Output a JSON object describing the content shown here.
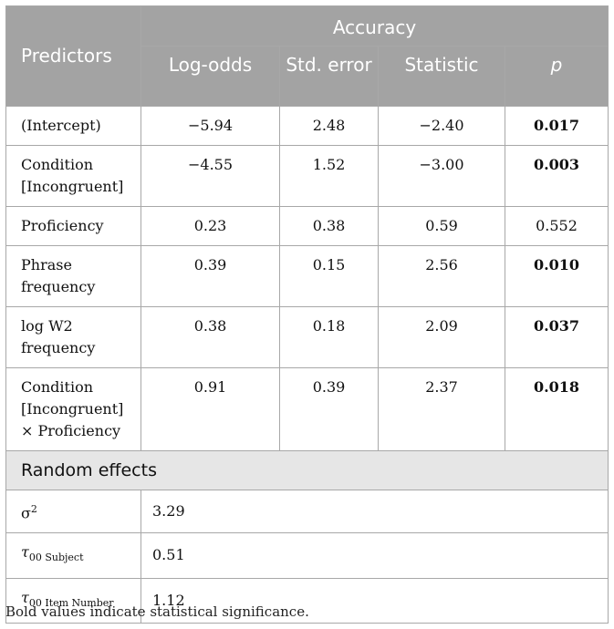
{
  "header": {
    "predictors": "Predictors",
    "group": "Accuracy",
    "columns": [
      "Log-odds",
      "Std. error",
      "Statistic",
      "p"
    ]
  },
  "rows": [
    {
      "predictor": "(Intercept)",
      "log_odds": "−5.94",
      "std_error": "2.48",
      "statistic": "−2.40",
      "p": "0.017"
    },
    {
      "predictor": "Condition [Incongruent]",
      "log_odds": "−4.55",
      "std_error": "1.52",
      "statistic": "−3.00",
      "p": "0.003"
    },
    {
      "predictor": "Proficiency",
      "log_odds": "0.23",
      "std_error": "0.38",
      "statistic": "0.59",
      "p": "0.552"
    },
    {
      "predictor": "Phrase frequency",
      "log_odds": "0.39",
      "std_error": "0.15",
      "statistic": "2.56",
      "p": "0.010"
    },
    {
      "predictor": "log W2 frequency",
      "log_odds": "0.38",
      "std_error": "0.18",
      "statistic": "2.09",
      "p": "0.037"
    },
    {
      "predictor_line1": "Condition",
      "predictor_line2": "[Incongruent]",
      "predictor_line3": "× Proficiency",
      "log_odds": "0.91",
      "std_error": "0.39",
      "statistic": "2.37",
      "p": "0.018"
    }
  ],
  "random_effects": {
    "title": "Random effects",
    "sigma": {
      "symbol": "σ",
      "sup": "2",
      "value": "3.29"
    },
    "tau_subject": {
      "symbol": "τ",
      "sub": "00 Subject",
      "value": "0.51"
    },
    "tau_item": {
      "symbol": "τ",
      "sub": "00 Item Number",
      "value": "1.12"
    }
  },
  "note": "Bold values indicate statistical significance."
}
